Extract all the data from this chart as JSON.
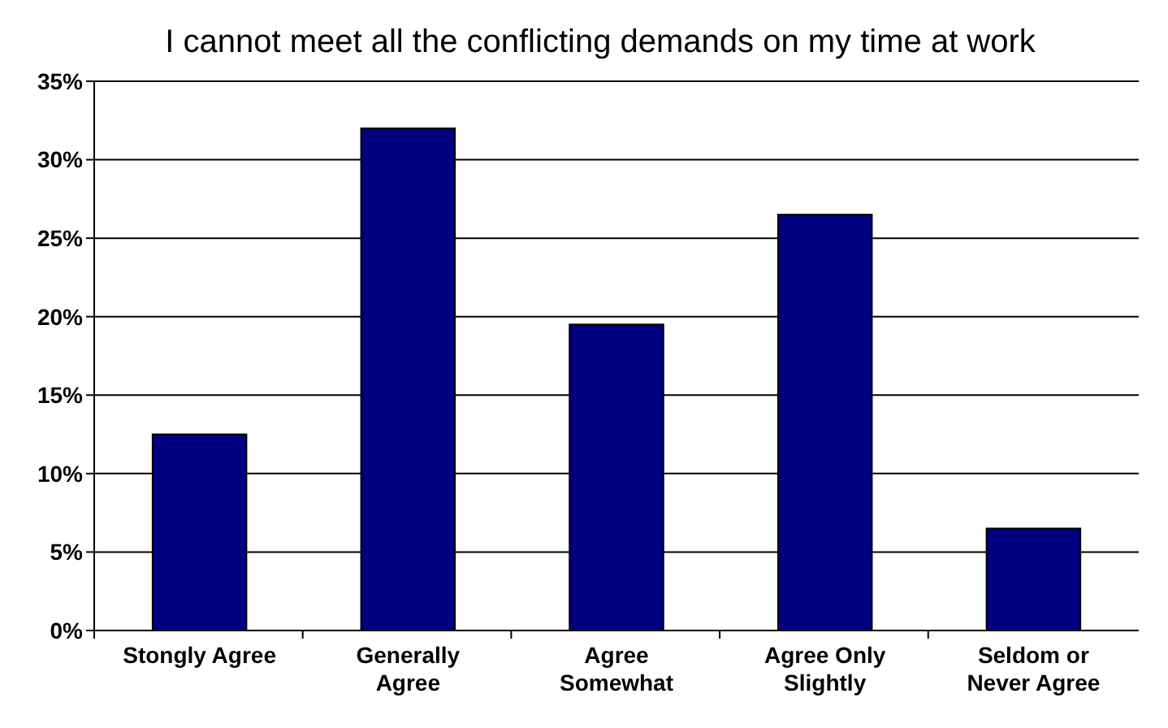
{
  "chart_data": {
    "type": "bar",
    "title": "I cannot meet all the conflicting demands on my time at work",
    "categories": [
      "Stongly Agree",
      "Generally Agree",
      "Agree Somewhat",
      "Agree Only Slightly",
      "Seldom or Never Agree"
    ],
    "values": [
      12.5,
      32,
      19.5,
      26.5,
      6.5
    ],
    "color": "#000080",
    "ylim": [
      0,
      35
    ],
    "yticks": [
      {
        "value": 0,
        "label": "0%"
      },
      {
        "value": 5,
        "label": "5%"
      },
      {
        "value": 10,
        "label": "10%"
      },
      {
        "value": 15,
        "label": "15%"
      },
      {
        "value": 20,
        "label": "20%"
      },
      {
        "value": 25,
        "label": "25%"
      },
      {
        "value": 30,
        "label": "30%"
      },
      {
        "value": 35,
        "label": "35%"
      }
    ],
    "grid": "y"
  }
}
